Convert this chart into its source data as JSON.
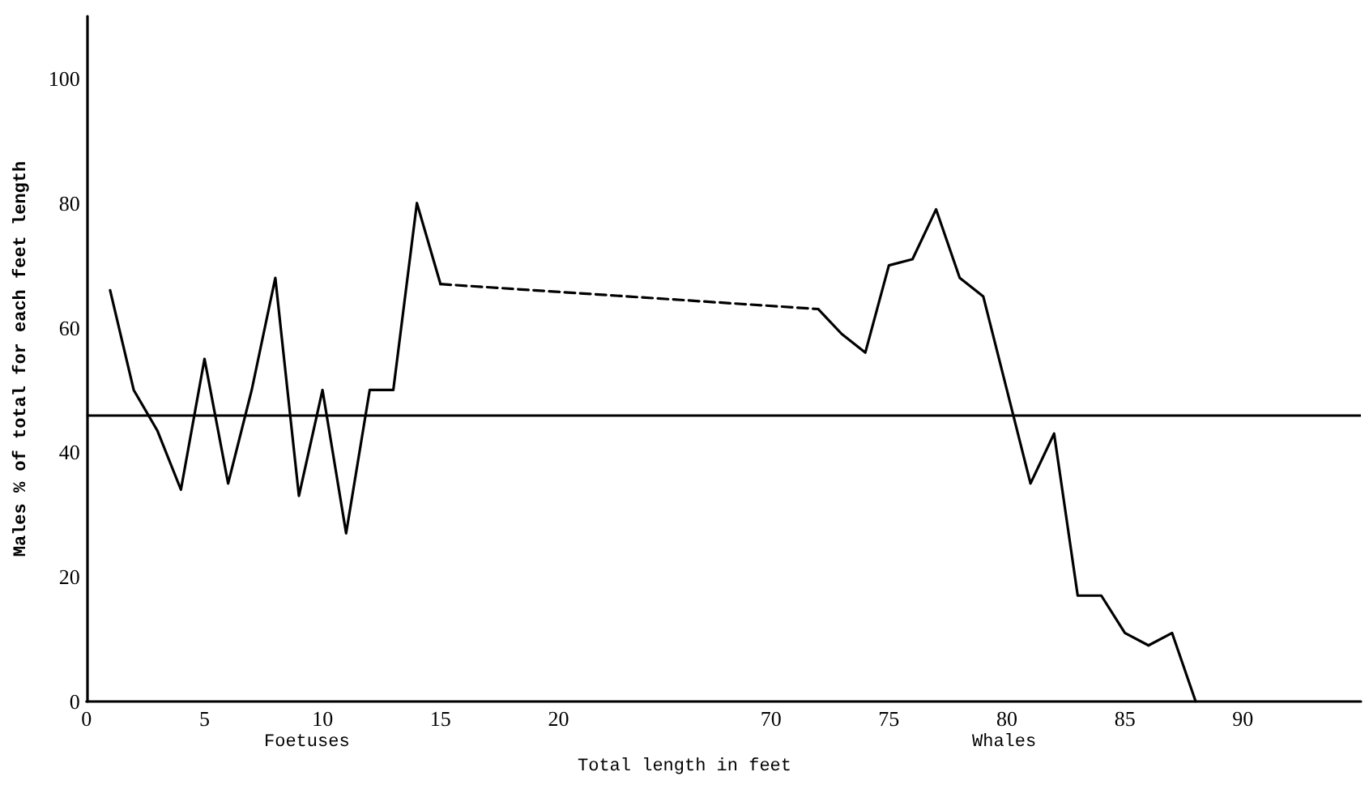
{
  "chart_data": {
    "type": "line",
    "xlabel": "Total length in feet",
    "ylabel": "Males % of total for each feet length",
    "annotations": [
      "Foetuses",
      "Whales"
    ],
    "categories": [
      "0",
      null,
      null,
      null,
      null,
      "5",
      null,
      null,
      null,
      null,
      "10",
      null,
      null,
      null,
      null,
      "15",
      null,
      null,
      null,
      null,
      "20",
      null,
      null,
      null,
      null,
      null,
      null,
      null,
      null,
      "70",
      null,
      null,
      null,
      null,
      "75",
      null,
      null,
      null,
      null,
      "80",
      null,
      null,
      null,
      null,
      "85",
      null,
      null,
      null,
      null,
      "90",
      null,
      null,
      null,
      null,
      null
    ],
    "series": [
      {
        "color": "#000000",
        "line_style": "solid",
        "values": [
          null,
          66,
          50,
          43.5,
          34,
          55,
          35,
          50,
          68,
          33,
          50,
          27,
          50,
          50,
          80,
          67,
          null,
          null,
          null,
          null,
          null,
          null,
          null,
          null,
          null,
          null,
          null,
          null,
          null,
          null,
          null,
          null,
          null,
          null,
          null,
          null,
          null,
          null,
          null,
          null,
          null,
          null,
          null,
          null,
          null,
          null,
          null,
          null,
          null,
          null,
          null,
          null,
          null,
          null,
          null
        ]
      },
      {
        "color": "#000000",
        "line_style": "dashed",
        "values": [
          null,
          null,
          null,
          null,
          null,
          null,
          null,
          null,
          null,
          null,
          null,
          null,
          null,
          null,
          null,
          67,
          null,
          null,
          null,
          null,
          null,
          null,
          null,
          null,
          null,
          null,
          null,
          null,
          null,
          null,
          null,
          63,
          null,
          null,
          null,
          null,
          null,
          null,
          null,
          null,
          null,
          null,
          null,
          null,
          null,
          null,
          null,
          null,
          null,
          null,
          null,
          null,
          null,
          null,
          null
        ]
      },
      {
        "color": "#000000",
        "line_style": "solid",
        "values": [
          null,
          null,
          null,
          null,
          null,
          null,
          null,
          null,
          null,
          null,
          null,
          null,
          null,
          null,
          null,
          null,
          null,
          null,
          null,
          null,
          null,
          null,
          null,
          null,
          null,
          null,
          null,
          null,
          null,
          null,
          null,
          63,
          59,
          56,
          70,
          71,
          79,
          68,
          65,
          50,
          35,
          43,
          17,
          17,
          11,
          9,
          11,
          0,
          null,
          null,
          null,
          null,
          null,
          null,
          null
        ]
      }
    ],
    "ylim": [
      0,
      110
    ],
    "yticks": [
      0,
      20,
      40,
      60,
      80,
      100
    ],
    "ref_lines": [
      {
        "axis": "y",
        "value": 46,
        "color": "#000000"
      }
    ],
    "marker": "none",
    "grid": false
  }
}
